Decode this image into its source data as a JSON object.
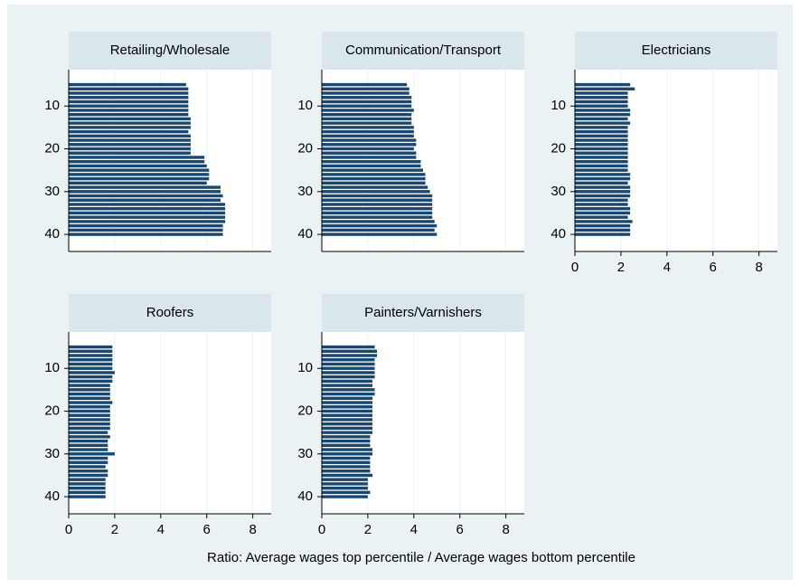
{
  "chart_data": {
    "type": "bar",
    "orientation": "horizontal",
    "x_label": "Ratio: Average wages top percentile / Average wages bottom percentile",
    "xlim": [
      0,
      8.8
    ],
    "xticks": [
      0,
      2,
      4,
      6,
      8
    ],
    "ylim": [
      1.5,
      44
    ],
    "yticks": [
      10,
      20,
      30,
      40
    ],
    "categories": [
      5,
      6,
      7,
      8,
      9,
      10,
      11,
      12,
      13,
      14,
      15,
      16,
      17,
      18,
      19,
      20,
      21,
      22,
      23,
      24,
      25,
      26,
      27,
      28,
      29,
      30,
      31,
      32,
      33,
      34,
      35,
      36,
      37,
      38,
      39,
      40
    ],
    "color": "#1a476f",
    "grid": true,
    "panels": [
      {
        "title": "Retailing/Wholesale",
        "x_axis_shown": false,
        "values": [
          5.1,
          5.2,
          5.2,
          5.2,
          5.2,
          5.2,
          5.2,
          5.2,
          5.3,
          5.3,
          5.3,
          5.2,
          5.3,
          5.3,
          5.3,
          5.3,
          5.3,
          5.9,
          5.9,
          6.0,
          6.1,
          6.1,
          6.1,
          6.0,
          6.6,
          6.6,
          6.7,
          6.6,
          6.8,
          6.8,
          6.8,
          6.8,
          6.8,
          6.7,
          6.7,
          6.7
        ]
      },
      {
        "title": "Communication/Transport",
        "x_axis_shown": false,
        "values": [
          3.7,
          3.8,
          3.8,
          3.9,
          3.9,
          3.9,
          4.0,
          3.9,
          3.9,
          3.9,
          4.0,
          4.0,
          4.0,
          4.1,
          4.1,
          4.0,
          4.1,
          4.1,
          4.3,
          4.3,
          4.4,
          4.5,
          4.5,
          4.5,
          4.6,
          4.7,
          4.8,
          4.8,
          4.8,
          4.8,
          4.8,
          4.8,
          4.9,
          5.0,
          4.9,
          5.0
        ]
      },
      {
        "title": "Electricians",
        "x_axis_shown": true,
        "values": [
          2.4,
          2.6,
          2.3,
          2.3,
          2.3,
          2.3,
          2.4,
          2.4,
          2.3,
          2.4,
          2.3,
          2.3,
          2.3,
          2.3,
          2.3,
          2.3,
          2.3,
          2.3,
          2.3,
          2.3,
          2.3,
          2.4,
          2.4,
          2.3,
          2.4,
          2.4,
          2.4,
          2.3,
          2.3,
          2.4,
          2.4,
          2.3,
          2.5,
          2.4,
          2.4,
          2.4
        ]
      },
      {
        "title": "Roofers",
        "x_axis_shown": true,
        "values": [
          1.9,
          1.9,
          1.9,
          1.9,
          1.9,
          1.9,
          2.0,
          1.9,
          1.9,
          1.8,
          1.8,
          1.8,
          1.8,
          1.9,
          1.8,
          1.8,
          1.8,
          1.8,
          1.8,
          1.8,
          1.7,
          1.8,
          1.7,
          1.7,
          1.7,
          2.0,
          1.7,
          1.7,
          1.6,
          1.7,
          1.7,
          1.6,
          1.6,
          1.6,
          1.6,
          1.6
        ]
      },
      {
        "title": "Painters/Varnishers",
        "x_axis_shown": true,
        "values": [
          2.3,
          2.4,
          2.4,
          2.3,
          2.3,
          2.3,
          2.3,
          2.3,
          2.2,
          2.2,
          2.3,
          2.3,
          2.2,
          2.2,
          2.2,
          2.2,
          2.2,
          2.2,
          2.2,
          2.2,
          2.2,
          2.1,
          2.1,
          2.1,
          2.2,
          2.2,
          2.1,
          2.1,
          2.1,
          2.1,
          2.2,
          2.0,
          2.0,
          2.0,
          2.1,
          2.0
        ]
      }
    ]
  }
}
